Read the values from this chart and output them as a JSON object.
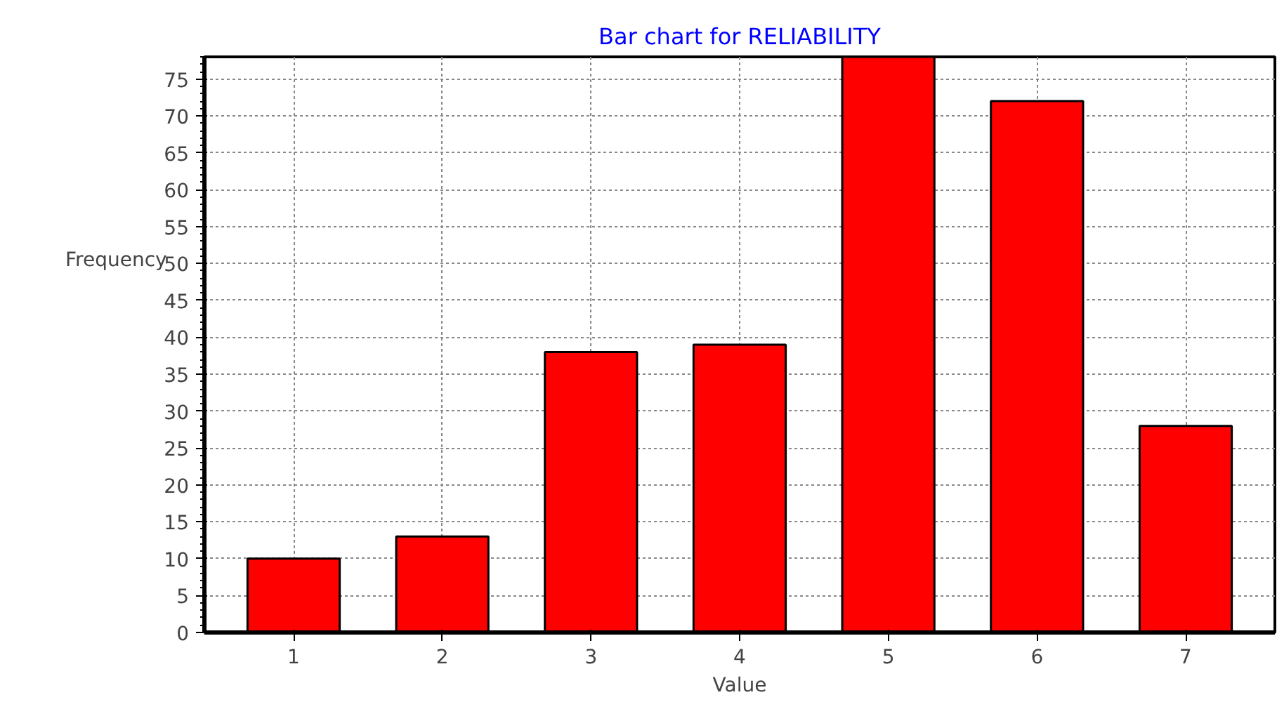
{
  "chart_data": {
    "type": "bar",
    "title": "Bar chart for RELIABILITY",
    "xlabel": "Value",
    "ylabel": "Frequency",
    "x": [
      1,
      2,
      3,
      4,
      5,
      6,
      7
    ],
    "values": [
      10,
      13,
      38,
      39,
      78,
      72,
      28
    ],
    "color": "#ff0000",
    "xlim": [
      0.4,
      7.6
    ],
    "xticks": [
      1,
      2,
      3,
      4,
      5,
      6,
      7
    ],
    "ylim": [
      0,
      78
    ],
    "yticks": [
      0,
      5,
      10,
      15,
      20,
      25,
      30,
      35,
      40,
      45,
      50,
      55,
      60,
      65,
      70,
      75
    ],
    "grid": true
  }
}
